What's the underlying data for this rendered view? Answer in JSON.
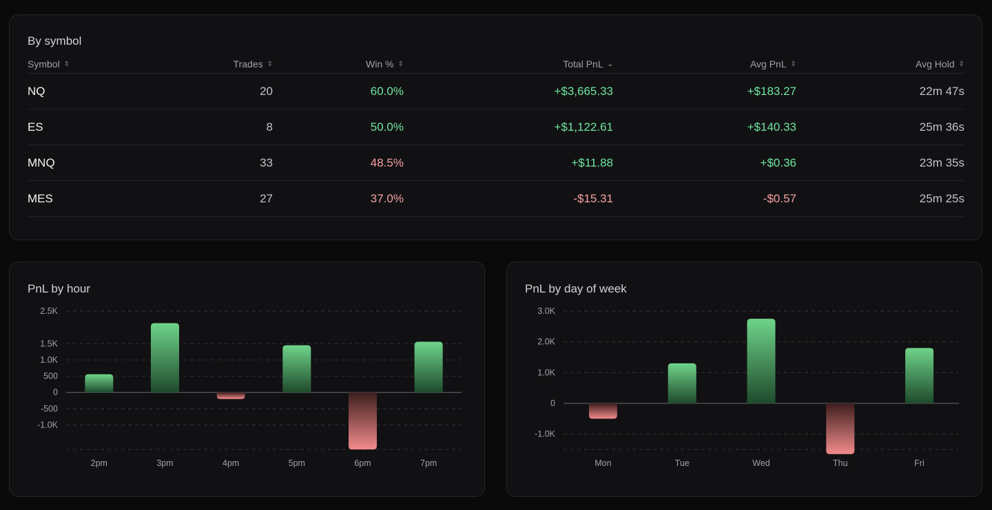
{
  "by_symbol": {
    "title": "By symbol",
    "columns": [
      {
        "label": "Symbol",
        "sort": "both"
      },
      {
        "label": "Trades",
        "sort": "both"
      },
      {
        "label": "Win %",
        "sort": "both"
      },
      {
        "label": "Total PnL",
        "sort": "desc"
      },
      {
        "label": "Avg PnL",
        "sort": "both"
      },
      {
        "label": "Avg Hold",
        "sort": "both"
      }
    ],
    "rows": [
      {
        "symbol": "NQ",
        "trades": "20",
        "win": "60.0%",
        "win_status": "pos",
        "total": "+$3,665.33",
        "total_status": "pos",
        "avg": "+$183.27",
        "avg_status": "pos",
        "hold": "22m 47s"
      },
      {
        "symbol": "ES",
        "trades": "8",
        "win": "50.0%",
        "win_status": "pos",
        "total": "+$1,122.61",
        "total_status": "pos",
        "avg": "+$140.33",
        "avg_status": "pos",
        "hold": "25m 36s"
      },
      {
        "symbol": "MNQ",
        "trades": "33",
        "win": "48.5%",
        "win_status": "neg",
        "total": "+$11.88",
        "total_status": "pos",
        "avg": "+$0.36",
        "avg_status": "pos",
        "hold": "23m 35s"
      },
      {
        "symbol": "MES",
        "trades": "27",
        "win": "37.0%",
        "win_status": "neg",
        "total": "-$15.31",
        "total_status": "neg",
        "avg": "-$0.57",
        "avg_status": "neg",
        "hold": "25m 25s"
      }
    ]
  },
  "colors": {
    "positive": "#6ee7a0",
    "negative": "#f7a1a1",
    "bar_positive": "#6fd48a",
    "bar_negative": "#f28b8b"
  },
  "chart_data": [
    {
      "type": "bar",
      "title": "PnL by hour",
      "categories": [
        "2pm",
        "3pm",
        "4pm",
        "5pm",
        "6pm",
        "7pm"
      ],
      "values": [
        560,
        2130,
        -200,
        1450,
        -1750,
        1560
      ],
      "yticks": [
        2500,
        1500,
        1000,
        500,
        0,
        -500,
        -1000
      ],
      "ytick_labels": [
        "2.5K",
        "1.5K",
        "1.0K",
        "500",
        "0",
        "-500",
        "-1.0K"
      ],
      "ylim": [
        -1750,
        2500
      ],
      "grid": true
    },
    {
      "type": "bar",
      "title": "PnL by day of week",
      "categories": [
        "Mon",
        "Tue",
        "Wed",
        "Thu",
        "Fri"
      ],
      "values": [
        -500,
        1300,
        2750,
        -1650,
        1800
      ],
      "yticks": [
        3000,
        2000,
        1000,
        0,
        -1000
      ],
      "ytick_labels": [
        "3.0K",
        "2.0K",
        "1.0K",
        "0",
        "-1.0K"
      ],
      "ylim": [
        -1500,
        3000
      ],
      "grid": true
    }
  ]
}
